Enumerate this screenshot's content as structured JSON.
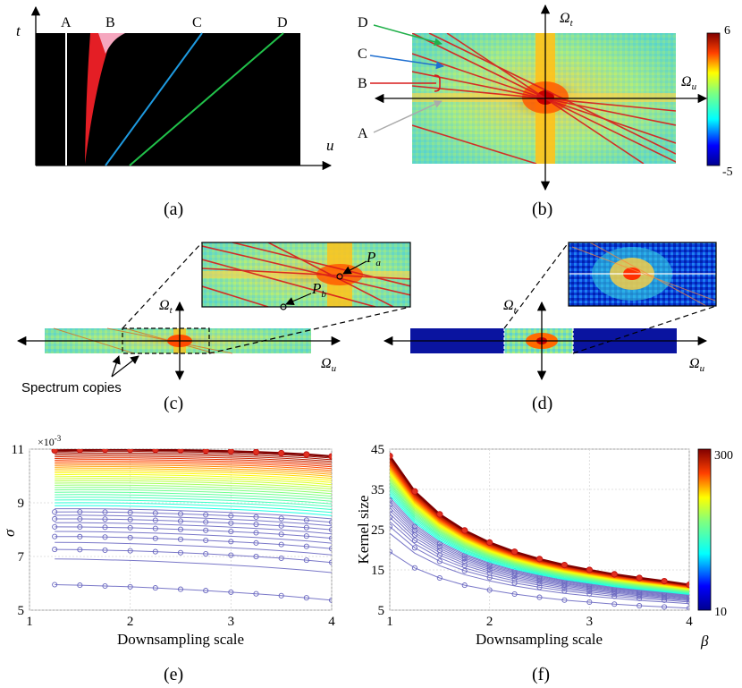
{
  "panels": {
    "a": {
      "label": "(a)",
      "axis_t": "t",
      "axis_u": "u",
      "lines": [
        "A",
        "B",
        "C",
        "D"
      ]
    },
    "b": {
      "label": "(b)",
      "axis_h": "Ω",
      "axis_h_sub": "u",
      "axis_v": "Ω",
      "axis_v_sub": "t",
      "arrows": [
        "D",
        "C",
        "B",
        "A"
      ],
      "colorbar_max": "6",
      "colorbar_min": "-5"
    },
    "c": {
      "label": "(c)",
      "axis_h": "Ω",
      "axis_h_sub": "u",
      "axis_v": "Ω",
      "axis_v_sub": "t",
      "point_a": "P",
      "point_a_sub": "a",
      "point_b": "P",
      "point_b_sub": "b",
      "note": "Spectrum copies"
    },
    "d": {
      "label": "(d)",
      "axis_h": "Ω",
      "axis_h_sub": "u",
      "axis_v": "Ω",
      "axis_v_sub": "t"
    },
    "e": {
      "label": "(e)"
    },
    "f": {
      "label": "(f)",
      "colorbar_label": "β",
      "colorbar_max": "300",
      "colorbar_min": "10"
    }
  },
  "chart_data": [
    {
      "type": "line",
      "title": "",
      "xlabel": "Downsampling scale",
      "ylabel": "σ",
      "y_multiplier": "×10",
      "y_multiplier_exp": "-3",
      "xlim": [
        1,
        4
      ],
      "ylim": [
        5,
        11
      ],
      "xticks": [
        "1",
        "2",
        "3",
        "4"
      ],
      "yticks": [
        "5",
        "7",
        "9",
        "11"
      ],
      "x": [
        1.25,
        1.5,
        1.75,
        2.0,
        2.25,
        2.5,
        2.75,
        3.0,
        3.25,
        3.5,
        3.75,
        4.0
      ],
      "series_count": 40,
      "series_first": {
        "name": "β=10",
        "values": [
          5.95,
          5.93,
          5.9,
          5.87,
          5.83,
          5.78,
          5.73,
          5.67,
          5.61,
          5.54,
          5.46,
          5.37
        ]
      },
      "series_last": {
        "name": "β=300",
        "values": [
          10.95,
          10.97,
          10.98,
          10.98,
          10.97,
          10.96,
          10.94,
          10.92,
          10.89,
          10.85,
          10.8,
          10.73
        ]
      }
    },
    {
      "type": "line",
      "title": "",
      "xlabel": "Downsampling scale",
      "ylabel": "Kernel size",
      "xlim": [
        1,
        4
      ],
      "ylim": [
        5,
        45
      ],
      "xticks": [
        "1",
        "2",
        "3",
        "4"
      ],
      "yticks": [
        "5",
        "15",
        "25",
        "35",
        "45"
      ],
      "x": [
        1.0,
        1.25,
        1.5,
        1.75,
        2.0,
        2.25,
        2.5,
        2.75,
        3.0,
        3.25,
        3.5,
        3.75,
        4.0
      ],
      "series_count": 40,
      "series_first": {
        "name": "β=10",
        "values": [
          19.5,
          15.5,
          13.0,
          11.2,
          10.0,
          9.0,
          8.2,
          7.5,
          7.0,
          6.5,
          6.1,
          5.8,
          5.5
        ]
      },
      "series_last": {
        "name": "β=300",
        "values": [
          43.3,
          34.5,
          28.8,
          24.8,
          21.8,
          19.5,
          17.7,
          16.2,
          15.0,
          13.9,
          13.0,
          12.2,
          11.3
        ]
      }
    }
  ]
}
